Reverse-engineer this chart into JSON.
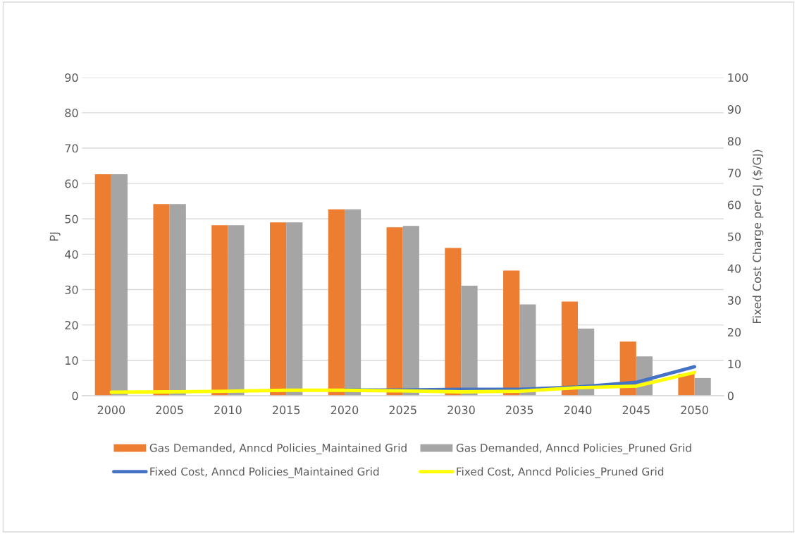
{
  "chart_data": {
    "type": "bar",
    "ylabel": "PJ",
    "y2label": "Fixed Cost Charge per GJ ($/GJ)",
    "categories": [
      "2000",
      "2005",
      "2010",
      "2015",
      "2020",
      "2025",
      "2030",
      "2035",
      "2040",
      "2045",
      "2050"
    ],
    "series": [
      {
        "name": "Gas Demanded, Anncd Policies_Maintained Grid",
        "color": "#ed7d31",
        "values": [
          62.6,
          54.2,
          48.2,
          49.0,
          52.7,
          47.6,
          41.8,
          35.4,
          26.6,
          15.3,
          6.2
        ]
      },
      {
        "name": "Gas Demanded, Anncd Policies_Pruned Grid",
        "color": "#a5a5a5",
        "values": [
          62.6,
          54.2,
          48.2,
          49.0,
          52.7,
          48.0,
          31.1,
          25.8,
          19.0,
          11.1,
          5.0
        ]
      },
      {
        "name": "Fixed Cost, Anncd Policies_Maintained Grid",
        "color": "#4472c4",
        "type": "line",
        "axis": "y2",
        "values": [
          null,
          null,
          null,
          null,
          1.8,
          1.8,
          2.0,
          2.0,
          2.7,
          4.2,
          9.1
        ]
      },
      {
        "name": "Fixed Cost, Anncd Policies_Pruned Grid",
        "color": "#ffff00",
        "type": "line",
        "axis": "y2",
        "values": [
          1.1,
          1.2,
          1.4,
          1.7,
          1.7,
          1.5,
          1.2,
          1.4,
          2.5,
          3.0,
          7.3
        ]
      }
    ],
    "ylim": [
      0,
      90
    ],
    "yticks": [
      0,
      10,
      20,
      30,
      40,
      50,
      60,
      70,
      80,
      90
    ],
    "y2lim": [
      0,
      100
    ],
    "y2ticks": [
      0,
      10,
      20,
      30,
      40,
      50,
      60,
      70,
      80,
      90,
      100
    ],
    "grid": "y",
    "legend": "bottom",
    "marker": "none",
    "line_style": "solid"
  }
}
